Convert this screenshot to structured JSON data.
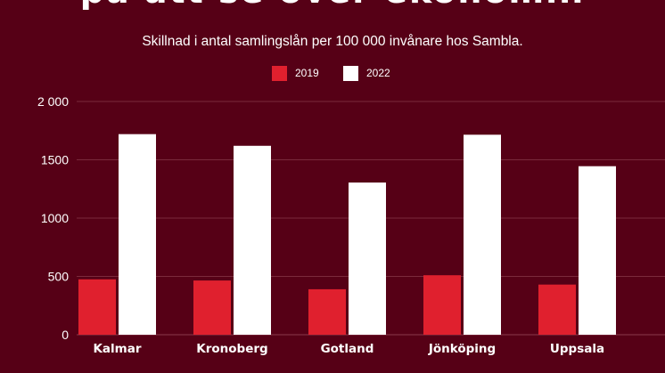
{
  "header": {
    "title": "på att se över ekonomin",
    "subtitle": "Skillnad i antal samlingslån per 100 000 invånare hos Sambla."
  },
  "colors": {
    "background": "#560016",
    "series_2019": "#e0202e",
    "series_2022": "#ffffff",
    "gridline": "#7a2a3c",
    "text": "#ffffff"
  },
  "chart_data": {
    "type": "bar",
    "title": "",
    "subtitle": "Skillnad i antal samlingslån per 100 000 invånare hos Sambla.",
    "xlabel": "",
    "ylabel": "",
    "categories": [
      "Kalmar",
      "Kronoberg",
      "Gotland",
      "Jönköping",
      "Uppsala"
    ],
    "series": [
      {
        "name": "2019",
        "values": [
          475,
          465,
          390,
          510,
          430
        ],
        "color": "#e0202e"
      },
      {
        "name": "2022",
        "values": [
          1720,
          1620,
          1305,
          1715,
          1445
        ],
        "color": "#ffffff"
      }
    ],
    "ylim": [
      0,
      2000
    ],
    "yticks": [
      0,
      500,
      1000,
      1500,
      2000
    ],
    "ytick_labels": [
      "0",
      "500",
      "1000",
      "1500",
      "2 000"
    ],
    "grid": true,
    "legend_position": "top-center"
  }
}
